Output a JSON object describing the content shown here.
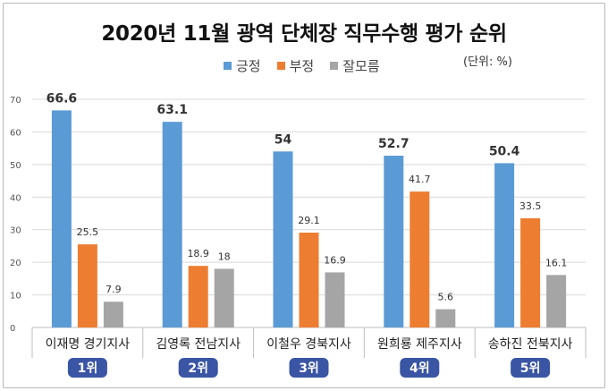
{
  "chart_data": {
    "type": "bar",
    "title": "2020년 11월 광역 단체장 직무수행 평가 순위",
    "unit": "(단위: %)",
    "ylim": [
      0,
      70
    ],
    "yticks": [
      0,
      10,
      20,
      30,
      40,
      50,
      60,
      70
    ],
    "grid": true,
    "legend_position": "top-center",
    "categories": [
      "이재명 경기지사",
      "김영록 전남지사",
      "이철우 경북지사",
      "원희룡 제주지사",
      "송하진 전북지사"
    ],
    "ranks": [
      "1위",
      "2위",
      "3위",
      "4위",
      "5위"
    ],
    "series": [
      {
        "name": "긍정",
        "color": "#5b9bd5",
        "values": [
          66.6,
          63.1,
          54,
          52.7,
          50.4
        ]
      },
      {
        "name": "부정",
        "color": "#ed7d31",
        "values": [
          25.5,
          18.9,
          29.1,
          41.7,
          33.5
        ]
      },
      {
        "name": "잘모름",
        "color": "#a5a5a5",
        "values": [
          7.9,
          18,
          16.9,
          5.6,
          16.1
        ]
      }
    ]
  },
  "colors": {
    "badge": "#3a55a4",
    "grid": "#d9d9d9"
  }
}
